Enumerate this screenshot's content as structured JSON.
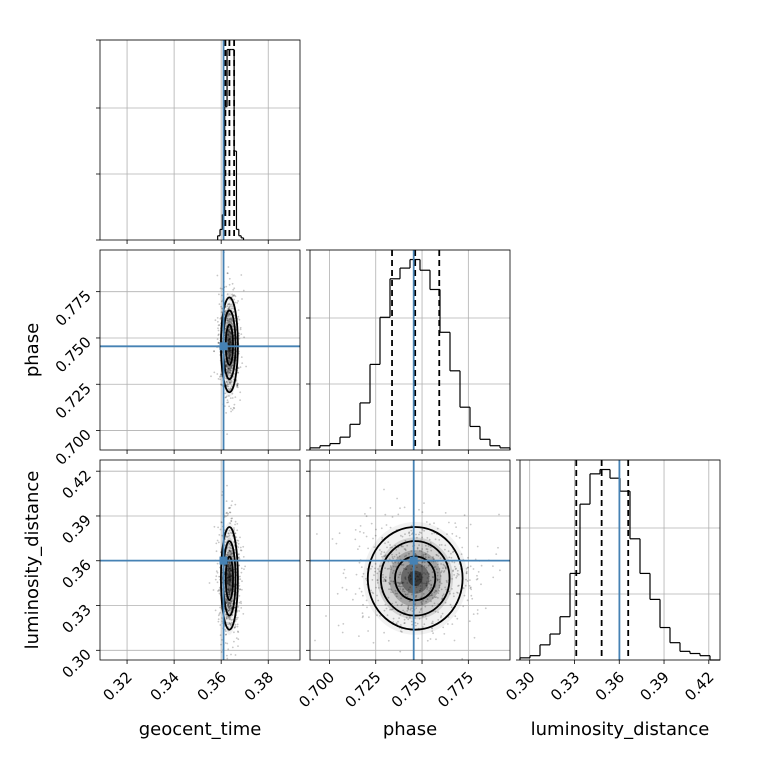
{
  "chart_data": {
    "type": "corner",
    "title": "",
    "parameters": [
      "geocent_time",
      "phase",
      "luminosity_distance"
    ],
    "axis_labels": {
      "geocent_time": "geocent_time",
      "phase": "phase",
      "luminosity_distance": "luminosity_distance"
    },
    "ranges": {
      "geocent_time": [
        0.3085,
        0.3935
      ],
      "phase": [
        0.6895,
        0.7975
      ],
      "luminosity_distance": [
        0.2935,
        0.4275
      ]
    },
    "ticks": {
      "geocent_time": {
        "values": [
          0.32,
          0.34,
          0.36,
          0.38
        ],
        "labels": [
          "0.32",
          "0.34",
          "0.36",
          "0.38"
        ]
      },
      "phase": {
        "values": [
          0.7,
          0.725,
          0.75,
          0.775
        ],
        "labels": [
          "0.700",
          "0.725",
          "0.750",
          "0.775"
        ]
      },
      "luminosity_distance": {
        "values": [
          0.3,
          0.33,
          0.36,
          0.39,
          0.42
        ],
        "labels": [
          "0.30",
          "0.33",
          "0.36",
          "0.39",
          "0.42"
        ]
      }
    },
    "truths": {
      "geocent_time": 0.361,
      "phase": 0.7455,
      "luminosity_distance": 0.3601
    },
    "quantiles": {
      "geocent_time": [
        0.3618,
        0.3635,
        0.3655
      ],
      "phase": [
        0.7338,
        0.7463,
        0.7593
      ],
      "luminosity_distance": [
        0.3312,
        0.3482,
        0.366
      ]
    },
    "posterior_means": {
      "geocent_time": 0.3635,
      "phase": 0.7463,
      "luminosity_distance": 0.3482
    },
    "posterior_sds": {
      "geocent_time": 0.0018,
      "phase": 0.0128,
      "luminosity_distance": 0.0172
    },
    "histograms": {
      "geocent_time": {
        "edges": [
          0.3585,
          0.3595,
          0.3605,
          0.3615,
          0.3625,
          0.3635,
          0.3645,
          0.3655,
          0.3665,
          0.3675,
          0.3685,
          0.3695
        ],
        "counts": [
          2,
          5,
          12,
          63,
          90,
          90,
          90,
          42,
          5,
          2,
          1
        ]
      },
      "phase": {
        "edges": [
          0.6895,
          0.6949,
          0.7003,
          0.7057,
          0.7111,
          0.7165,
          0.7219,
          0.7273,
          0.7327,
          0.7381,
          0.7435,
          0.7489,
          0.7543,
          0.7597,
          0.7651,
          0.7705,
          0.7759,
          0.7813,
          0.7867,
          0.7921,
          0.7975
        ],
        "counts": [
          1,
          2,
          3,
          6,
          12,
          22,
          40,
          62,
          80,
          85,
          89,
          84,
          75,
          55,
          37,
          20,
          11,
          5,
          2,
          1
        ]
      },
      "luminosity_distance": {
        "edges": [
          0.2935,
          0.3002,
          0.3069,
          0.3136,
          0.3203,
          0.327,
          0.3337,
          0.3404,
          0.3471,
          0.3538,
          0.3605,
          0.3672,
          0.3739,
          0.3806,
          0.3873,
          0.394,
          0.4007,
          0.4074,
          0.4141,
          0.4208,
          0.4275
        ],
        "counts": [
          1,
          2,
          7,
          12,
          20,
          40,
          72,
          86,
          88,
          84,
          78,
          56,
          40,
          28,
          15,
          8,
          4,
          3,
          2,
          0
        ]
      }
    },
    "colors": {
      "truth": "#4682b4",
      "hist": "#000000",
      "quantile": "#000000",
      "grid": "#b0b0b0",
      "density": "#000000"
    },
    "grid": true
  }
}
